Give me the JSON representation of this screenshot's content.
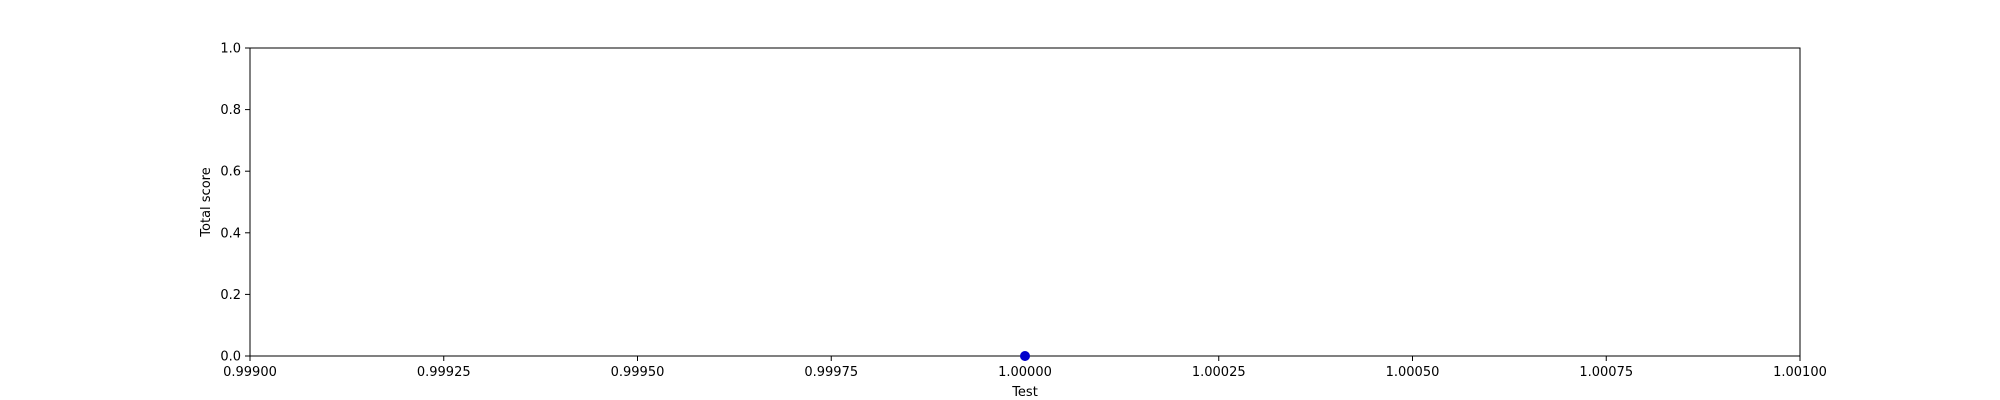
{
  "chart_data": {
    "type": "scatter",
    "title": "",
    "xlabel": "Test",
    "ylabel": "Total score",
    "xlim": [
      0.999,
      1.001
    ],
    "ylim": [
      0.0,
      1.0
    ],
    "x_ticks": [
      0.999,
      0.99925,
      0.9995,
      0.99975,
      1.0,
      1.00025,
      1.0005,
      1.00075,
      1.001
    ],
    "x_tick_labels": [
      "0.99900",
      "0.99925",
      "0.99950",
      "0.99975",
      "1.00000",
      "1.00025",
      "1.00050",
      "1.00075",
      "1.00100"
    ],
    "y_ticks": [
      0.0,
      0.2,
      0.4,
      0.6,
      0.8,
      1.0
    ],
    "y_tick_labels": [
      "0.0",
      "0.2",
      "0.4",
      "0.6",
      "0.8",
      "1.0"
    ],
    "grid": false,
    "series": [
      {
        "color": "#0000cc",
        "points": [
          {
            "x": 1.0,
            "y": 0.0
          }
        ]
      }
    ]
  }
}
